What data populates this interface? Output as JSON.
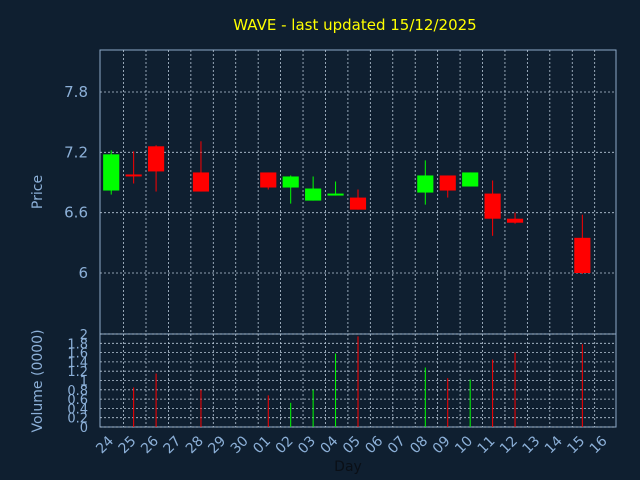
{
  "chart_data": {
    "type": "candlestick",
    "title": "WAVE - last updated 15/12/2025",
    "xlabel": "Day",
    "colors": {
      "up": "#00ff00",
      "down": "#ff0000",
      "background": "#0f1f30",
      "text": "#8cb0d8",
      "title": "#ffff00"
    },
    "x_ticks": [
      "24",
      "25",
      "26",
      "27",
      "28",
      "29",
      "30",
      "01",
      "02",
      "03",
      "04",
      "05",
      "06",
      "07",
      "08",
      "09",
      "10",
      "11",
      "12",
      "13",
      "14",
      "15",
      "16"
    ],
    "price_panel": {
      "ylabel": "Price",
      "ylim": [
        5.6,
        7.2
      ],
      "yticks": [
        6,
        6.6,
        7.2,
        7.8
      ],
      "ytick_labels": [
        "6",
        "6.6",
        "7.2",
        "7.8"
      ],
      "grid": true,
      "candles": [
        {
          "day": "24",
          "open": 6.82,
          "high": 7.22,
          "low": 6.78,
          "close": 7.18
        },
        {
          "day": "25",
          "open": 6.98,
          "high": 7.21,
          "low": 6.89,
          "close": 6.97
        },
        {
          "day": "26",
          "open": 7.26,
          "high": 7.27,
          "low": 6.81,
          "close": 7.01
        },
        {
          "day": "28",
          "open": 7.0,
          "high": 7.31,
          "low": 6.81,
          "close": 6.81
        },
        {
          "day": "01",
          "open": 7.0,
          "high": 7.0,
          "low": 6.83,
          "close": 6.85
        },
        {
          "day": "02",
          "open": 6.85,
          "high": 6.97,
          "low": 6.69,
          "close": 6.96
        },
        {
          "day": "03",
          "open": 6.72,
          "high": 6.96,
          "low": 6.72,
          "close": 6.84
        },
        {
          "day": "04",
          "open": 6.78,
          "high": 6.91,
          "low": 6.77,
          "close": 6.79
        },
        {
          "day": "05",
          "open": 6.75,
          "high": 6.83,
          "low": 6.63,
          "close": 6.63
        },
        {
          "day": "08",
          "open": 6.8,
          "high": 7.12,
          "low": 6.68,
          "close": 6.97
        },
        {
          "day": "09",
          "open": 6.97,
          "high": 6.97,
          "low": 6.75,
          "close": 6.82
        },
        {
          "day": "10",
          "open": 6.86,
          "high": 7.0,
          "low": 6.86,
          "close": 7.0
        },
        {
          "day": "11",
          "open": 6.79,
          "high": 6.92,
          "low": 6.37,
          "close": 6.54
        },
        {
          "day": "12",
          "open": 6.54,
          "high": 6.6,
          "low": 6.49,
          "close": 6.5
        },
        {
          "day": "15",
          "open": 6.35,
          "high": 6.58,
          "low": 5.99,
          "close": 6.0
        }
      ]
    },
    "volume_panel": {
      "ylabel": "Volume (0000)",
      "ylim": [
        0,
        2
      ],
      "yticks": [
        0,
        0.2,
        0.4,
        0.6,
        0.8,
        1,
        1.2,
        1.4,
        1.6,
        1.8,
        2
      ],
      "ytick_labels": [
        "0",
        "0.2",
        "0.4",
        "0.6",
        "0.8",
        "1",
        "1.2",
        "1.4",
        "1.6",
        "1.8",
        "2"
      ],
      "bars": [
        {
          "day": "25",
          "value": 0.85,
          "dir": "down"
        },
        {
          "day": "26",
          "value": 1.15,
          "dir": "down"
        },
        {
          "day": "28",
          "value": 0.8,
          "dir": "down"
        },
        {
          "day": "01",
          "value": 0.68,
          "dir": "down"
        },
        {
          "day": "02",
          "value": 0.52,
          "dir": "up"
        },
        {
          "day": "03",
          "value": 0.8,
          "dir": "up"
        },
        {
          "day": "04",
          "value": 1.58,
          "dir": "up"
        },
        {
          "day": "05",
          "value": 1.95,
          "dir": "down"
        },
        {
          "day": "08",
          "value": 1.28,
          "dir": "up"
        },
        {
          "day": "09",
          "value": 1.05,
          "dir": "down"
        },
        {
          "day": "10",
          "value": 1.02,
          "dir": "up"
        },
        {
          "day": "11",
          "value": 1.45,
          "dir": "down"
        },
        {
          "day": "12",
          "value": 1.6,
          "dir": "down"
        },
        {
          "day": "15",
          "value": 1.78,
          "dir": "down"
        }
      ]
    }
  }
}
